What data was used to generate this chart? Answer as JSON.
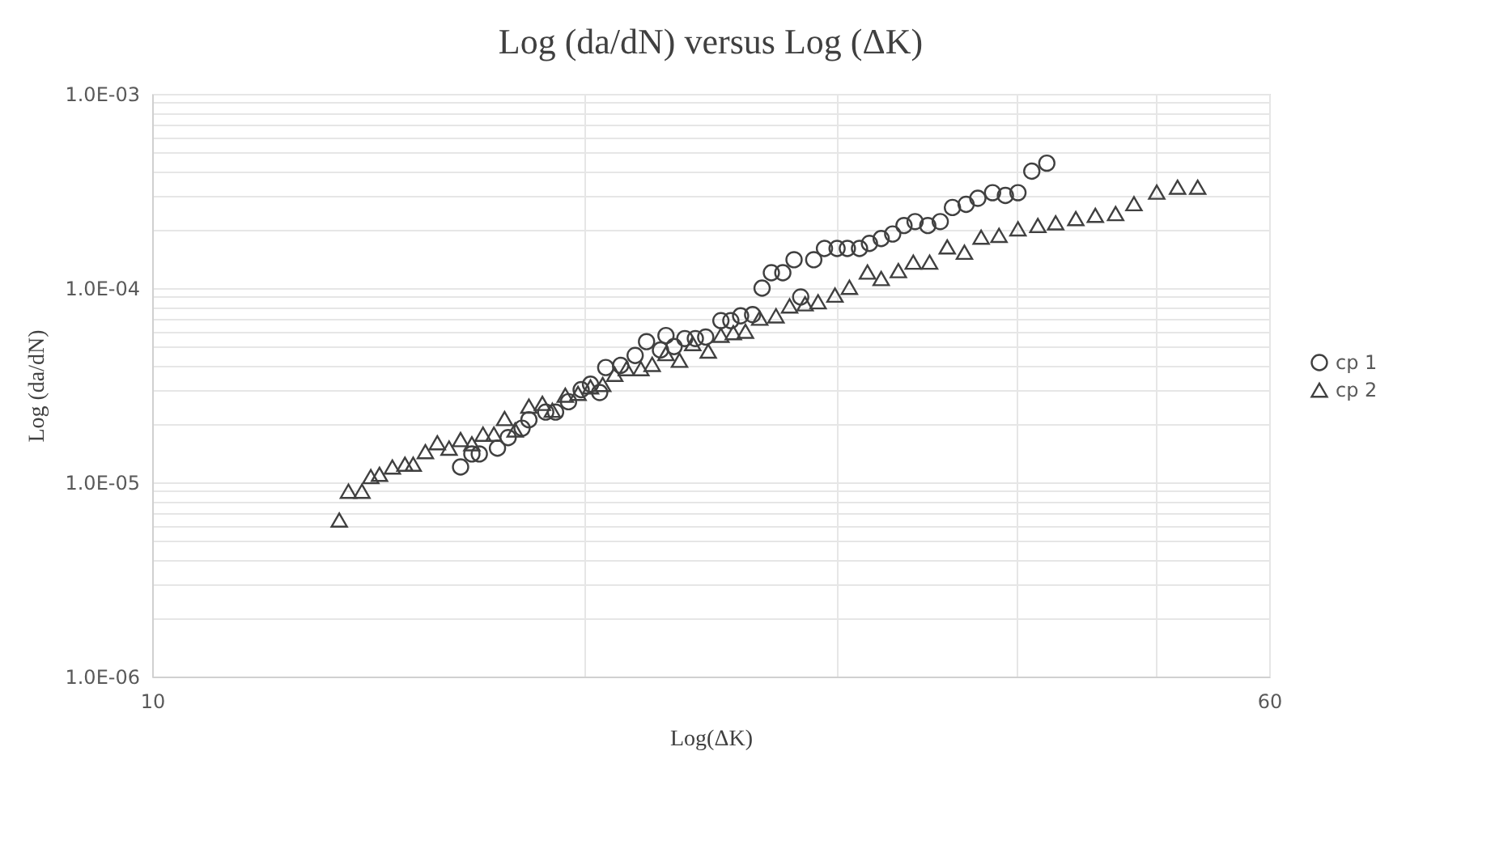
{
  "chart_data": {
    "type": "scatter",
    "title": "Log (da/dN) versus Log (ΔK)",
    "xlabel": "Log(ΔK)",
    "ylabel": "Log (da/dN)",
    "log": "xy",
    "grid": true,
    "legend": "right",
    "xlim": [
      10,
      60
    ],
    "ylim": [
      1e-06,
      0.001
    ],
    "xticks": [
      10,
      {
        "value": 20,
        "label": null
      },
      {
        "value": 30,
        "label": null
      },
      {
        "value": 40,
        "label": null
      },
      {
        "value": 50,
        "label": null
      },
      60
    ],
    "yticks": [
      {
        "value": 1e-06,
        "label": "1.0E-06"
      },
      {
        "value": 2e-06,
        "label": null
      },
      {
        "value": 3e-06,
        "label": null
      },
      {
        "value": 4e-06,
        "label": null
      },
      {
        "value": 5e-06,
        "label": null
      },
      {
        "value": 6e-06,
        "label": null
      },
      {
        "value": 7e-06,
        "label": null
      },
      {
        "value": 8e-06,
        "label": null
      },
      {
        "value": 9e-06,
        "label": null
      },
      {
        "value": 1e-05,
        "label": "1.0E-05"
      },
      {
        "value": 2e-05,
        "label": null
      },
      {
        "value": 3e-05,
        "label": null
      },
      {
        "value": 4e-05,
        "label": null
      },
      {
        "value": 5e-05,
        "label": null
      },
      {
        "value": 6e-05,
        "label": null
      },
      {
        "value": 7e-05,
        "label": null
      },
      {
        "value": 8e-05,
        "label": null
      },
      {
        "value": 9e-05,
        "label": null
      },
      {
        "value": 0.0001,
        "label": "1.0E-04"
      },
      {
        "value": 0.0002,
        "label": null
      },
      {
        "value": 0.0003,
        "label": null
      },
      {
        "value": 0.0004,
        "label": null
      },
      {
        "value": 0.0005,
        "label": null
      },
      {
        "value": 0.0006,
        "label": null
      },
      {
        "value": 0.0007,
        "label": null
      },
      {
        "value": 0.0008,
        "label": null
      },
      {
        "value": 0.0009,
        "label": null
      },
      {
        "value": 0.001,
        "label": "1.0E-03"
      }
    ],
    "series": [
      {
        "name": "cp 1",
        "color": "#404040",
        "marker": "circle",
        "x": [
          16.4,
          16.7,
          16.9,
          17.4,
          17.7,
          18.1,
          18.3,
          18.8,
          19.1,
          19.5,
          19.9,
          20.2,
          20.5,
          20.7,
          21.2,
          21.7,
          22.1,
          22.6,
          22.8,
          23.1,
          23.5,
          23.9,
          24.3,
          24.9,
          25.3,
          25.7,
          26.2,
          26.6,
          27,
          27.5,
          28,
          28.3,
          28.9,
          29.4,
          30,
          30.5,
          31.1,
          31.6,
          32.2,
          32.8,
          33.4,
          34,
          34.7,
          35.4,
          36.1,
          36.9,
          37.6,
          38.5,
          39.3,
          40.1,
          41,
          42
        ],
        "values": [
          1.2e-05,
          1.4e-05,
          1.4e-05,
          1.5e-05,
          1.7e-05,
          1.9e-05,
          2.1e-05,
          2.3e-05,
          2.3e-05,
          2.6e-05,
          3e-05,
          3.2e-05,
          2.9e-05,
          3.9e-05,
          4e-05,
          4.5e-05,
          5.3e-05,
          4.8e-05,
          5.7e-05,
          5e-05,
          5.5e-05,
          5.5e-05,
          5.6e-05,
          6.8e-05,
          6.8e-05,
          7.2e-05,
          7.3e-05,
          0.0001,
          0.00012,
          0.00012,
          0.00014,
          9e-05,
          0.00014,
          0.00016,
          0.00016,
          0.00016,
          0.00016,
          0.00017,
          0.00018,
          0.00019,
          0.00021,
          0.00022,
          0.00021,
          0.00022,
          0.00026,
          0.00027,
          0.00029,
          0.00031,
          0.0003,
          0.00031,
          0.0004,
          0.00044
        ]
      },
      {
        "name": "cp 2",
        "color": "#404040",
        "marker": "triangle",
        "x": [
          13.5,
          13.7,
          14,
          14.2,
          14.4,
          14.7,
          15,
          15.2,
          15.5,
          15.8,
          16.1,
          16.4,
          16.7,
          17,
          17.3,
          17.6,
          17.9,
          18.3,
          18.7,
          19,
          19.4,
          19.8,
          20.2,
          20.6,
          21,
          21.4,
          21.9,
          22.3,
          22.8,
          23.3,
          23.8,
          24.4,
          24.9,
          25.4,
          25.9,
          26.5,
          27.2,
          27.8,
          28.5,
          29.1,
          29.9,
          30.6,
          31.5,
          32.2,
          33.1,
          33.9,
          34.8,
          35.8,
          36.8,
          37.8,
          38.9,
          40.1,
          41.4,
          42.6,
          44,
          45.4,
          46.9,
          48.3,
          50.1,
          51.8,
          53.5
        ],
        "values": [
          6.4e-06,
          9e-06,
          9e-06,
          1.07e-05,
          1.1e-05,
          1.2e-05,
          1.24e-05,
          1.24e-05,
          1.44e-05,
          1.6e-05,
          1.5e-05,
          1.66e-05,
          1.58e-05,
          1.77e-05,
          1.77e-05,
          2.13e-05,
          1.86e-05,
          2.47e-05,
          2.55e-05,
          2.35e-05,
          2.81e-05,
          2.87e-05,
          3.1e-05,
          3.19e-05,
          3.6e-05,
          3.85e-05,
          3.85e-05,
          4.05e-05,
          4.6e-05,
          4.25e-05,
          5.18e-05,
          4.74e-05,
          5.72e-05,
          5.9e-05,
          6e-05,
          7e-05,
          7.2e-05,
          8.1e-05,
          8.3e-05,
          8.5e-05,
          9.2e-05,
          0.000101,
          0.000121,
          0.000112,
          0.000123,
          0.000136,
          0.000136,
          0.000163,
          0.000153,
          0.000183,
          0.000187,
          0.000202,
          0.00021,
          0.000217,
          0.000228,
          0.000237,
          0.000242,
          0.000272,
          0.000312,
          0.000331,
          0.000331
        ]
      }
    ]
  }
}
